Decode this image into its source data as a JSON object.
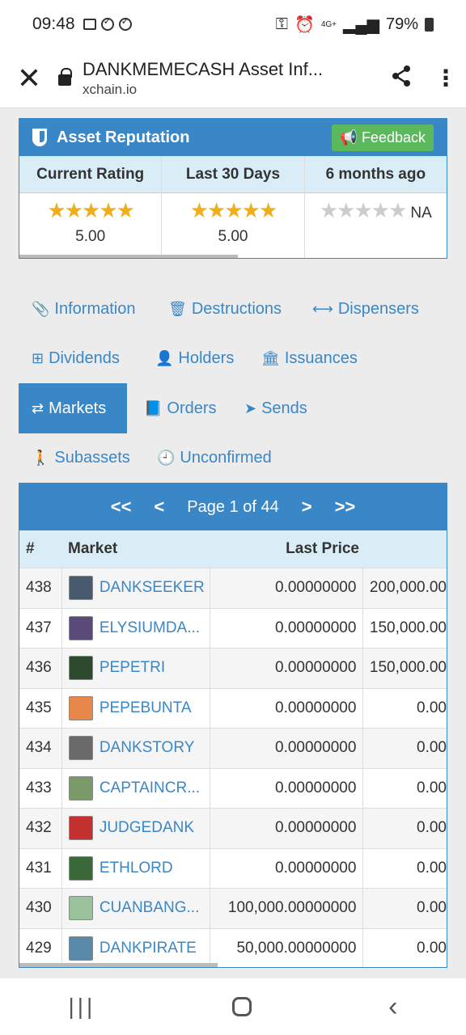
{
  "status": {
    "time": "09:48",
    "network": "4G+",
    "battery": "79%"
  },
  "appbar": {
    "title": "DANKMEMECASH Asset Inf...",
    "url": "xchain.io"
  },
  "reputation": {
    "title": "Asset Reputation",
    "feedback_label": "Feedback",
    "columns": [
      {
        "label": "Current Rating",
        "stars": 5,
        "value": "5.00"
      },
      {
        "label": "Last 30 Days",
        "stars": 5,
        "value": "5.00"
      },
      {
        "label": "6 months ago",
        "stars": 0,
        "value": "NA"
      }
    ]
  },
  "tabs": [
    {
      "label": "Information",
      "icon": "paperclip-icon"
    },
    {
      "label": "Destructions",
      "icon": "trash-icon"
    },
    {
      "label": "Dispensers",
      "icon": "arrows-h-icon"
    },
    {
      "label": "Dividends",
      "icon": "sitemap-icon"
    },
    {
      "label": "Holders",
      "icon": "user-icon"
    },
    {
      "label": "Issuances",
      "icon": "bank-icon"
    },
    {
      "label": "Markets",
      "icon": "exchange-icon"
    },
    {
      "label": "Orders",
      "icon": "book-icon"
    },
    {
      "label": "Sends",
      "icon": "paper-plane-icon"
    },
    {
      "label": "Subassets",
      "icon": "child-icon"
    },
    {
      "label": "Unconfirmed",
      "icon": "clock-icon"
    }
  ],
  "markets": {
    "pager": {
      "first": "<<",
      "prev": "<",
      "page_text": "Page 1 of 44",
      "next": ">",
      "last": ">>"
    },
    "headers": {
      "num": "#",
      "market": "Market",
      "last_price": "Last Price"
    },
    "rows": [
      {
        "num": "438",
        "market": "DANKSEEKER",
        "last_price": "0.00000000",
        "col4": "200,000.00",
        "color": "#4a5a6e"
      },
      {
        "num": "437",
        "market": "ELYSIUMDA...",
        "last_price": "0.00000000",
        "col4": "150,000.00",
        "color": "#5a4a7a"
      },
      {
        "num": "436",
        "market": "PEPETRI",
        "last_price": "0.00000000",
        "col4": "150,000.00",
        "color": "#2e4a2e"
      },
      {
        "num": "435",
        "market": "PEPEBUNTA",
        "last_price": "0.00000000",
        "col4": "0.00",
        "color": "#e8874a"
      },
      {
        "num": "434",
        "market": "DANKSTORY",
        "last_price": "0.00000000",
        "col4": "0.00",
        "color": "#6a6a6a"
      },
      {
        "num": "433",
        "market": "CAPTAINCR...",
        "last_price": "0.00000000",
        "col4": "0.00",
        "color": "#7a9a6a"
      },
      {
        "num": "432",
        "market": "JUDGEDANK",
        "last_price": "0.00000000",
        "col4": "0.00",
        "color": "#c23030"
      },
      {
        "num": "431",
        "market": "ETHLORD",
        "last_price": "0.00000000",
        "col4": "0.00",
        "color": "#3a6a3a"
      },
      {
        "num": "430",
        "market": "CUANBANG...",
        "last_price": "100,000.00000000",
        "col4": "0.00",
        "color": "#9ac29a"
      },
      {
        "num": "429",
        "market": "DANKPIRATE",
        "last_price": "50,000.00000000",
        "col4": "0.00",
        "color": "#5a8aaa"
      }
    ]
  }
}
